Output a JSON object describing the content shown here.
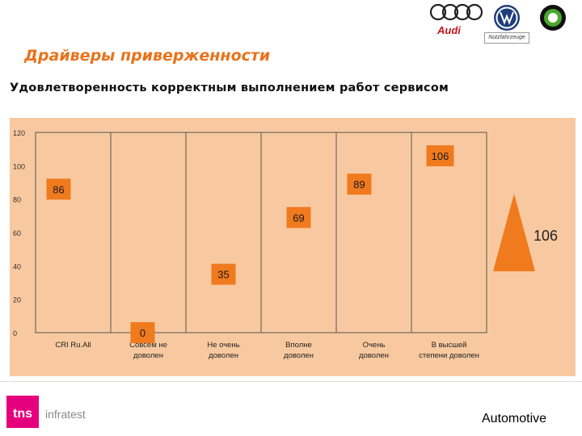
{
  "header": {
    "title": "Драйверы приверженности",
    "subtitle": "Удовлетворенность корректным выполнением работ сервисом",
    "brands": {
      "audi": "Audi",
      "vw_commercial": "Nutzfahrzeuge"
    }
  },
  "chart_data": {
    "type": "scatter",
    "categories": [
      "CRI Ru.All",
      "Совсем не доволен",
      "Не очень доволен",
      "Вполне доволен",
      "Очень доволен",
      "В высшей степени доволен"
    ],
    "values": [
      86,
      0,
      35,
      69,
      89,
      106
    ],
    "ylim": [
      0,
      120
    ],
    "yticks": [
      0,
      20,
      40,
      60,
      80,
      100,
      120
    ],
    "grid": false,
    "marker_color": "#f07a1e",
    "plot_background": "#f8c9a0"
  },
  "indicator": {
    "value": "106",
    "color": "#f07a1e"
  },
  "footer": {
    "logo": "tns",
    "logo_suffix": "infratest",
    "label": "Automotive",
    "logo_color": "#e5007d"
  }
}
